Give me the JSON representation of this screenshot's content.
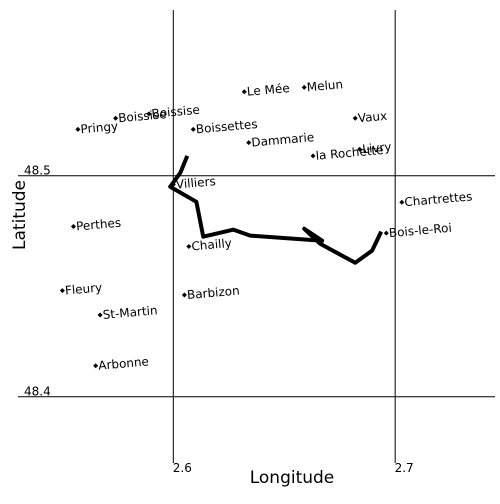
{
  "chart_data": {
    "type": "scatter",
    "xlabel": "Longitude",
    "ylabel": "Latitude",
    "xlim": [
      2.53,
      2.745
    ],
    "ylim": [
      48.37,
      48.575
    ],
    "xticks": [
      2.6,
      2.7
    ],
    "yticks": [
      48.4,
      48.5
    ],
    "grid": true,
    "labels": [
      "Le Mée",
      "Melun",
      "Pringy",
      "Boissise",
      "Boissise",
      "Boissettes",
      "Dammarie",
      "Vaux",
      "la Rochette",
      "Livry",
      "Villiers",
      "Chartrettes",
      "Perthes",
      "Chailly",
      "Bois-le-Roi",
      "Fleury",
      "Barbizon",
      "St-Martin",
      "Arbonne"
    ],
    "x": [
      2.632,
      2.659,
      2.557,
      2.574,
      2.589,
      2.609,
      2.634,
      2.682,
      2.663,
      2.684,
      2.6,
      2.703,
      2.555,
      2.607,
      2.696,
      2.55,
      2.605,
      2.567,
      2.565
    ],
    "y": [
      48.538,
      48.54,
      48.521,
      48.526,
      48.528,
      48.521,
      48.515,
      48.526,
      48.509,
      48.512,
      48.496,
      48.488,
      48.477,
      48.468,
      48.474,
      48.448,
      48.446,
      48.437,
      48.414
    ],
    "color": "#000000",
    "track": {
      "type": "line",
      "color": "#000000",
      "x": [
        2.6063,
        2.6032,
        2.5986,
        2.6104,
        2.6135,
        2.627,
        2.6347,
        2.6671,
        2.659,
        2.6662,
        2.682,
        2.6896,
        2.6937
      ],
      "y": [
        48.509,
        48.5014,
        48.495,
        48.4882,
        48.4724,
        48.4756,
        48.4729,
        48.4706,
        48.476,
        48.4692,
        48.4606,
        48.4661,
        48.4747
      ]
    }
  }
}
